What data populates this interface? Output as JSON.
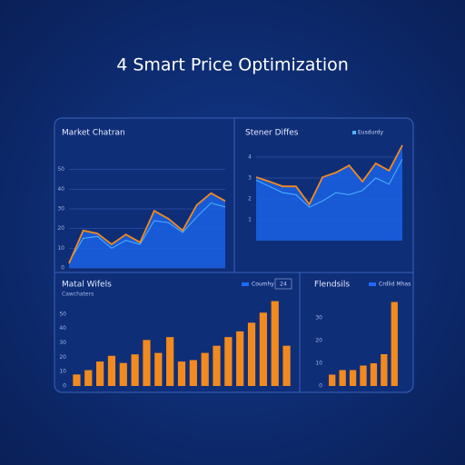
{
  "title": "4 Smart Price Optimization",
  "chart_data": [
    {
      "type": "area",
      "title": "Market Chatran",
      "categories": [
        null,
        null,
        null,
        null,
        null,
        null,
        null,
        null,
        null,
        null,
        null,
        null
      ],
      "series": [
        {
          "color": "#f28a1e",
          "values": [
            2.3,
            19,
            17.5,
            12,
            17,
            13,
            29,
            25,
            19,
            32,
            38,
            34
          ]
        },
        {
          "color": "#4fb3ff",
          "values": [
            3,
            15,
            16,
            10,
            14,
            12,
            24,
            23,
            18,
            26,
            33,
            31
          ]
        }
      ],
      "ylim": [
        0,
        60
      ],
      "yticks": [
        0,
        10,
        20,
        30,
        40,
        50
      ],
      "grid": true
    },
    {
      "type": "area",
      "title": "Stener Diffes",
      "categories": [
        null,
        null,
        null,
        null,
        null,
        null,
        null,
        null,
        null,
        null,
        null,
        null
      ],
      "series": [
        {
          "color": "#f28a1e",
          "values": [
            3.04,
            2.83,
            2.6,
            2.6,
            1.74,
            3.04,
            3.26,
            3.6,
            2.83,
            3.7,
            3.35,
            4.57
          ]
        },
        {
          "name": "Eusdurdy",
          "color": "#4fb3ff",
          "values": [
            2.9,
            2.6,
            2.3,
            2.2,
            1.6,
            1.9,
            2.3,
            2.2,
            2.4,
            3.0,
            2.7,
            3.9
          ]
        }
      ],
      "ylim": [
        0,
        5
      ],
      "yticks": [
        1,
        2,
        3,
        4
      ],
      "grid": true
    },
    {
      "type": "bar",
      "title": "Matal Wifels",
      "subtitle": "Cawchaters",
      "legend_badge": "24",
      "legend_color": "#1e6bff",
      "categories": [
        null,
        null,
        null,
        null,
        null,
        null,
        null,
        null,
        null,
        null,
        null,
        null,
        null,
        null,
        null,
        null,
        null,
        null,
        null
      ],
      "series": [
        {
          "name": "Coumhy",
          "color": "#f28a1e",
          "values": [
            8,
            11,
            17,
            21,
            16,
            22,
            32,
            23,
            34,
            17,
            18,
            23,
            28,
            34,
            38,
            44,
            51,
            59,
            28
          ]
        }
      ],
      "ylim": [
        0,
        60
      ],
      "yticks": [
        0,
        10,
        20,
        30,
        40,
        50
      ],
      "grid": false
    },
    {
      "type": "bar",
      "title": "Flendsils",
      "legend_color": "#1e6bff",
      "categories": [
        null,
        null,
        null,
        null,
        null,
        null,
        null
      ],
      "series": [
        {
          "name": "Crdlid Mhas",
          "color": "#f28a1e",
          "values": [
            5,
            7,
            7,
            9,
            10,
            14,
            37
          ]
        }
      ],
      "ylim": [
        0,
        40
      ],
      "yticks": [
        0,
        10,
        20,
        30
      ],
      "grid": false
    }
  ]
}
